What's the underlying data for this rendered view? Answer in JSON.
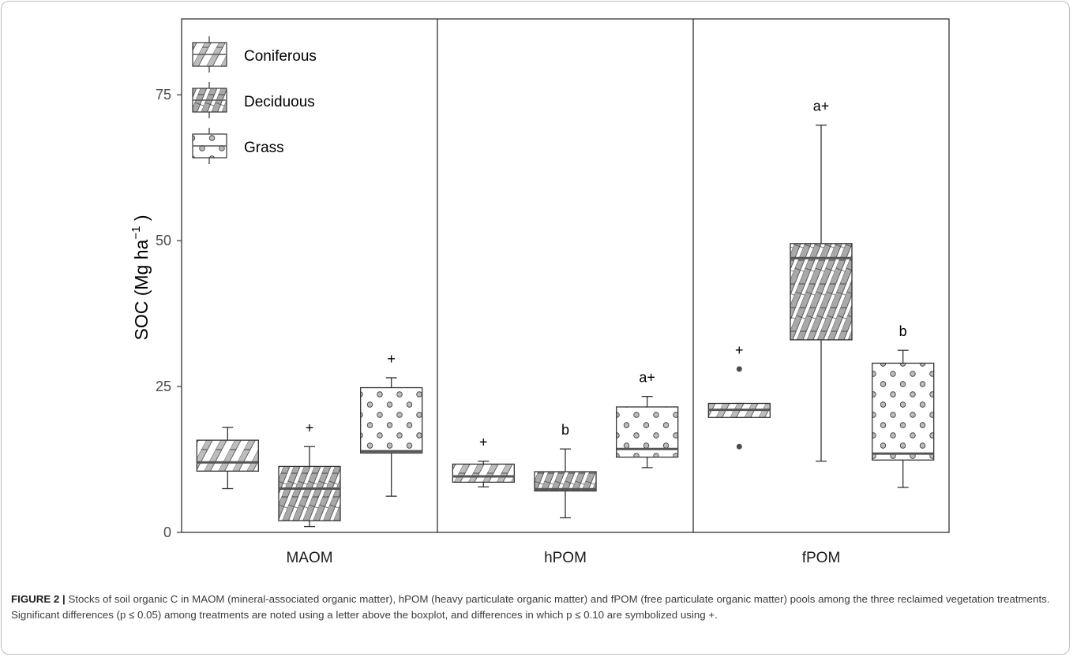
{
  "caption": {
    "label": "FIGURE 2 |",
    "text": "Stocks of soil organic C in MAOM (mineral-associated organic matter), hPOM (heavy particulate organic matter) and fPOM (free particulate organic matter) pools among the three reclaimed vegetation treatments. Significant differences (p ≤ 0.05) among treatments are noted using a letter above the boxplot, and differences in which p ≤ 0.10 are symbolized using +."
  },
  "colors": {
    "box_fill": "#ffffff",
    "pattern_gray": "#bdbdbd",
    "line": "#333333",
    "text": "#000000",
    "tick_text": "#4d4d4d"
  },
  "chart_data": {
    "type": "boxplot",
    "ylabel": "SOC (Mg ha",
    "ylabel_sup": "−1",
    "ylabel_close": ")",
    "ylim": [
      0,
      88
    ],
    "yticks": [
      0,
      25,
      50,
      75
    ],
    "panels": [
      "MAOM",
      "hPOM",
      "fPOM"
    ],
    "groups": [
      {
        "name": "Coniferous",
        "pattern": "stripe"
      },
      {
        "name": "Deciduous",
        "pattern": "crosshatch"
      },
      {
        "name": "Grass",
        "pattern": "dots"
      }
    ],
    "legend_position": "top-left",
    "boxes": [
      {
        "panel": "MAOM",
        "group": "Coniferous",
        "whisker_low": 7.5,
        "q1": 10.5,
        "median": 12.0,
        "q3": 15.8,
        "whisker_high": 18.0,
        "outliers": [],
        "annotation": ""
      },
      {
        "panel": "MAOM",
        "group": "Deciduous",
        "whisker_low": 1.0,
        "q1": 2.0,
        "median": 7.5,
        "q3": 11.3,
        "whisker_high": 14.7,
        "outliers": [],
        "annotation": "+"
      },
      {
        "panel": "MAOM",
        "group": "Grass",
        "whisker_low": 6.2,
        "q1": 13.6,
        "median": 13.9,
        "q3": 24.8,
        "whisker_high": 26.5,
        "outliers": [],
        "annotation": "+"
      },
      {
        "panel": "hPOM",
        "group": "Coniferous",
        "whisker_low": 7.8,
        "q1": 8.6,
        "median": 9.6,
        "q3": 11.7,
        "whisker_high": 12.2,
        "outliers": [],
        "annotation": "+"
      },
      {
        "panel": "hPOM",
        "group": "Deciduous",
        "whisker_low": 2.5,
        "q1": 7.1,
        "median": 7.4,
        "q3": 10.4,
        "whisker_high": 14.3,
        "outliers": [],
        "annotation": "b"
      },
      {
        "panel": "hPOM",
        "group": "Grass",
        "whisker_low": 11.1,
        "q1": 12.9,
        "median": 14.3,
        "q3": 21.5,
        "whisker_high": 23.3,
        "outliers": [],
        "annotation": "a+"
      },
      {
        "panel": "fPOM",
        "group": "Coniferous",
        "whisker_low": 19.7,
        "q1": 19.7,
        "median": 21.0,
        "q3": 22.1,
        "whisker_high": 22.1,
        "outliers": [
          28.0,
          14.7
        ],
        "annotation": "+"
      },
      {
        "panel": "fPOM",
        "group": "Deciduous",
        "whisker_low": 12.2,
        "q1": 33.0,
        "median": 47.0,
        "q3": 49.5,
        "whisker_high": 69.8,
        "outliers": [],
        "annotation": "a+"
      },
      {
        "panel": "fPOM",
        "group": "Grass",
        "whisker_low": 7.7,
        "q1": 12.4,
        "median": 13.5,
        "q3": 29.0,
        "whisker_high": 31.2,
        "outliers": [],
        "annotation": "b"
      }
    ]
  }
}
